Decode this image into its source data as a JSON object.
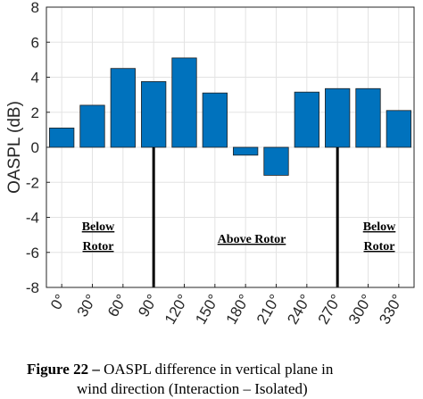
{
  "chart_data": {
    "type": "bar",
    "categories": [
      "0°",
      "30°",
      "60°",
      "90°",
      "120°",
      "150°",
      "180°",
      "210°",
      "240°",
      "270°",
      "300°",
      "330°"
    ],
    "values": [
      1.1,
      2.4,
      4.5,
      3.75,
      5.1,
      3.1,
      -0.45,
      -1.6,
      3.15,
      3.35,
      3.35,
      2.1
    ],
    "ylabel": "OASPL (dB)",
    "xlabel": "",
    "ylim": [
      -8,
      8
    ],
    "yticks": [
      -8,
      -6,
      -4,
      -2,
      0,
      2,
      4,
      6,
      8
    ],
    "grid": true,
    "bar_color": "#0072BD",
    "dividers_at": [
      "90°",
      "270°"
    ],
    "regions": [
      {
        "line1": "Below",
        "line2": "Rotor"
      },
      {
        "line1": "Above Rotor",
        "line2": ""
      },
      {
        "line1": "Below",
        "line2": "Rotor"
      }
    ]
  },
  "caption": {
    "figure_label": "Figure 22 –",
    "line1_text": " OASPL difference in vertical plane in",
    "line2_text": "wind direction (Interaction – Isolated)"
  }
}
